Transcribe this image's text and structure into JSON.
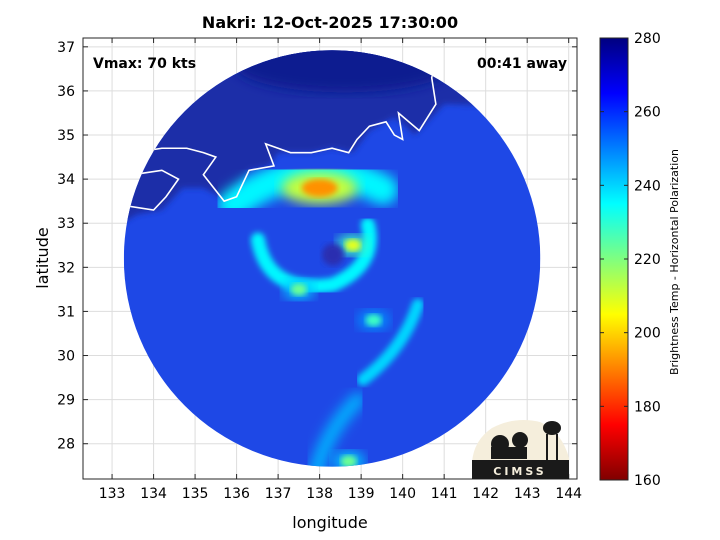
{
  "chart_data": {
    "type": "heatmap",
    "title": "Nakri: 12-Oct-2025 17:30:00",
    "xlabel": "longitude",
    "ylabel": "latitude",
    "xlim": [
      132.3,
      144.2
    ],
    "ylim": [
      27.2,
      37.2
    ],
    "xticks": [
      "133",
      "134",
      "135",
      "136",
      "137",
      "138",
      "139",
      "140",
      "141",
      "142",
      "143",
      "144"
    ],
    "yticks": [
      "28",
      "29",
      "30",
      "31",
      "32",
      "33",
      "34",
      "35",
      "36",
      "37"
    ],
    "grid": true,
    "annotations": {
      "vmax": "Vmax: 70 kts",
      "away": "00:41 away"
    },
    "colorbar": {
      "label": "Brightness Temp - Horizontal Polarization",
      "range": [
        160,
        280
      ],
      "ticks": [
        "160",
        "180",
        "200",
        "220",
        "240",
        "260",
        "280"
      ],
      "colormap": "jet"
    },
    "swath_center": [
      138.3,
      32.2
    ],
    "swath_radius_deg": 5.7,
    "storm_center": [
      138.2,
      32.4
    ],
    "features": [
      {
        "lon": 138.0,
        "lat": 33.8,
        "tb": 192
      },
      {
        "lon": 138.8,
        "lat": 32.5,
        "tb": 208
      },
      {
        "lon": 137.5,
        "lat": 31.5,
        "tb": 222
      },
      {
        "lon": 139.3,
        "lat": 30.8,
        "tb": 228
      },
      {
        "lon": 138.7,
        "lat": 27.6,
        "tb": 222
      }
    ],
    "logo": "CIMSS"
  },
  "colors": {
    "grid": "#dddddd",
    "axis": "#262626",
    "coast": "#ffffff"
  }
}
